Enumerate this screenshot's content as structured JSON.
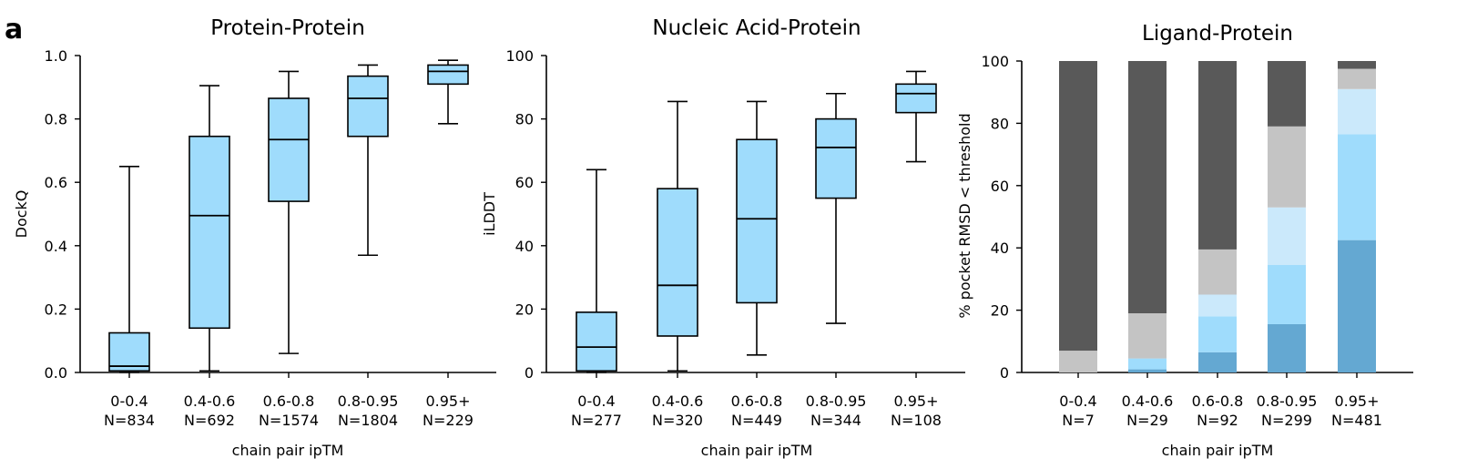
{
  "panel_letter": "a",
  "chart_data": [
    {
      "type": "box",
      "title": "Protein-Protein",
      "xlabel": "chain pair ipTM",
      "ylabel": "DockQ",
      "ylim": [
        0,
        1.0
      ],
      "yticks": [
        "0.0",
        "0.2",
        "0.4",
        "0.6",
        "0.8",
        "1.0"
      ],
      "ytick_values": [
        0,
        0.2,
        0.4,
        0.6,
        0.8,
        1.0
      ],
      "categories": [
        "0-0.4",
        "0.4-0.6",
        "0.6-0.8",
        "0.8-0.95",
        "0.95+"
      ],
      "counts": [
        "N=834",
        "N=692",
        "N=1574",
        "N=1804",
        "N=229"
      ],
      "box_color": "#9fdcfc",
      "boxes": [
        {
          "whisker_low": 0.0,
          "q1": 0.005,
          "median": 0.02,
          "q3": 0.125,
          "whisker_high": 0.65
        },
        {
          "whisker_low": 0.005,
          "q1": 0.14,
          "median": 0.495,
          "q3": 0.745,
          "whisker_high": 0.905
        },
        {
          "whisker_low": 0.06,
          "q1": 0.54,
          "median": 0.735,
          "q3": 0.865,
          "whisker_high": 0.95
        },
        {
          "whisker_low": 0.37,
          "q1": 0.745,
          "median": 0.865,
          "q3": 0.935,
          "whisker_high": 0.97
        },
        {
          "whisker_low": 0.785,
          "q1": 0.91,
          "median": 0.95,
          "q3": 0.97,
          "whisker_high": 0.985
        }
      ]
    },
    {
      "type": "box",
      "title": "Nucleic Acid-Protein",
      "xlabel": "chain pair ipTM",
      "ylabel": "iLDDT",
      "ylim": [
        0,
        100
      ],
      "yticks": [
        "0",
        "20",
        "40",
        "60",
        "80",
        "100"
      ],
      "ytick_values": [
        0,
        20,
        40,
        60,
        80,
        100
      ],
      "categories": [
        "0-0.4",
        "0.4-0.6",
        "0.6-0.8",
        "0.8-0.95",
        "0.95+"
      ],
      "counts": [
        "N=277",
        "N=320",
        "N=449",
        "N=344",
        "N=108"
      ],
      "box_color": "#9fdcfc",
      "boxes": [
        {
          "whisker_low": 0.0,
          "q1": 0.5,
          "median": 8.0,
          "q3": 19.0,
          "whisker_high": 64.0
        },
        {
          "whisker_low": 0.5,
          "q1": 11.5,
          "median": 27.5,
          "q3": 58.0,
          "whisker_high": 85.5
        },
        {
          "whisker_low": 5.5,
          "q1": 22.0,
          "median": 48.5,
          "q3": 73.5,
          "whisker_high": 85.5
        },
        {
          "whisker_low": 15.5,
          "q1": 55.0,
          "median": 71.0,
          "q3": 80.0,
          "whisker_high": 88.0
        },
        {
          "whisker_low": 66.5,
          "q1": 82.0,
          "median": 88.0,
          "q3": 91.0,
          "whisker_high": 95.0
        }
      ]
    },
    {
      "type": "stacked_bar",
      "title": "Ligand-Protein",
      "xlabel": "chain pair ipTM",
      "ylabel": "% pocket RMSD < threshold",
      "ylim": [
        0,
        100
      ],
      "yticks": [
        "0",
        "20",
        "40",
        "60",
        "80",
        "100"
      ],
      "ytick_values": [
        0,
        20,
        40,
        60,
        80,
        100
      ],
      "categories": [
        "0-0.4",
        "0.4-0.6",
        "0.6-0.8",
        "0.8-0.95",
        "0.95+"
      ],
      "counts": [
        "N=7",
        "N=29",
        "N=92",
        "N=299",
        "N=481"
      ],
      "segment_colors": [
        "#64a8d2",
        "#9fdcfc",
        "#cbe9fb",
        "#c4c4c4",
        "#595959"
      ],
      "stacks": [
        [
          0,
          0,
          0,
          7,
          93
        ],
        [
          1,
          3.5,
          0,
          14.5,
          81
        ],
        [
          6.5,
          11.5,
          7,
          14.5,
          60.5
        ],
        [
          15.5,
          19,
          18.5,
          26,
          21
        ],
        [
          42.5,
          34,
          14.5,
          6.5,
          2.5
        ]
      ]
    }
  ]
}
